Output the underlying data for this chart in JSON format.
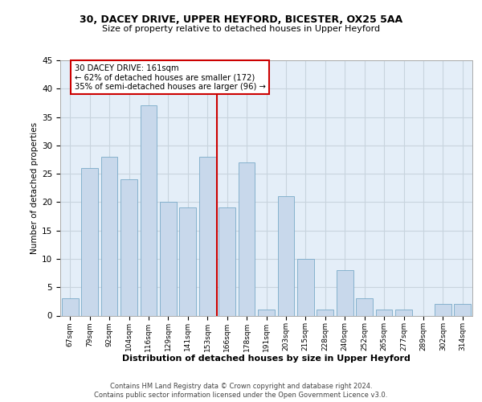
{
  "title_line1": "30, DACEY DRIVE, UPPER HEYFORD, BICESTER, OX25 5AA",
  "title_line2": "Size of property relative to detached houses in Upper Heyford",
  "xlabel": "Distribution of detached houses by size in Upper Heyford",
  "ylabel": "Number of detached properties",
  "categories": [
    "67sqm",
    "79sqm",
    "92sqm",
    "104sqm",
    "116sqm",
    "129sqm",
    "141sqm",
    "153sqm",
    "166sqm",
    "178sqm",
    "191sqm",
    "203sqm",
    "215sqm",
    "228sqm",
    "240sqm",
    "252sqm",
    "265sqm",
    "277sqm",
    "289sqm",
    "302sqm",
    "314sqm"
  ],
  "values": [
    3,
    26,
    28,
    24,
    37,
    20,
    19,
    28,
    19,
    27,
    1,
    21,
    10,
    1,
    8,
    3,
    1,
    1,
    0,
    2,
    2
  ],
  "bar_color": "#c8d8eb",
  "bar_edge_color": "#7aaac8",
  "vline_index": 8,
  "annotation_text": "30 DACEY DRIVE: 161sqm\n← 62% of detached houses are smaller (172)\n35% of semi-detached houses are larger (96) →",
  "annotation_box_bg": "#ffffff",
  "annotation_box_edge": "#cc0000",
  "vline_color": "#cc0000",
  "ylim": [
    0,
    45
  ],
  "yticks": [
    0,
    5,
    10,
    15,
    20,
    25,
    30,
    35,
    40,
    45
  ],
  "grid_color": "#c8d4de",
  "bg_color": "#e4eef8",
  "footer_line1": "Contains HM Land Registry data © Crown copyright and database right 2024.",
  "footer_line2": "Contains public sector information licensed under the Open Government Licence v3.0."
}
